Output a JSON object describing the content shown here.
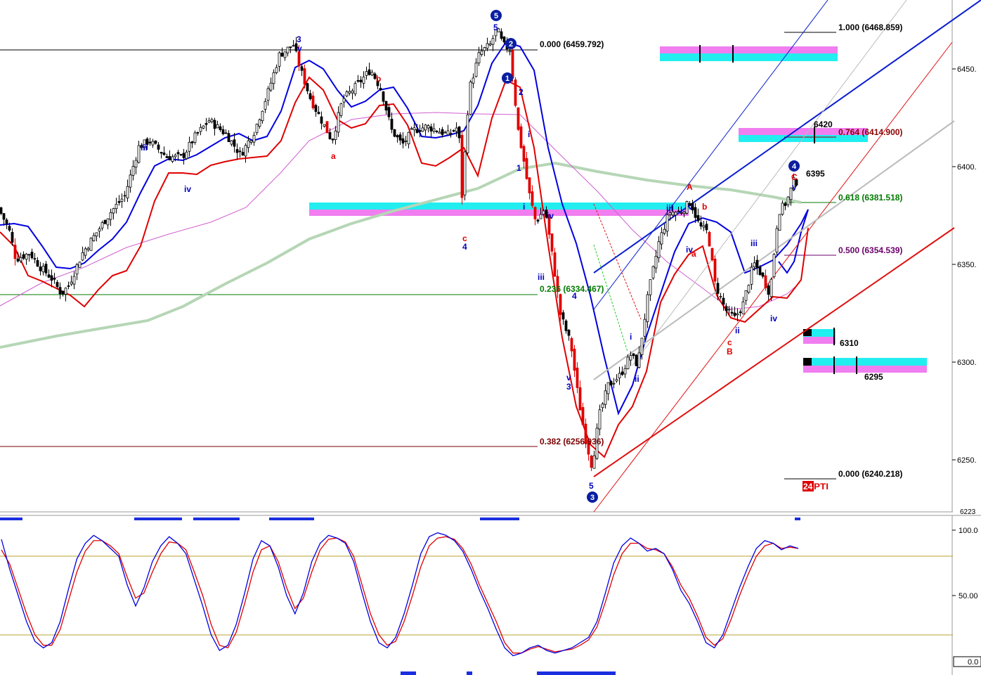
{
  "chart_data": [
    {
      "type": "candlestick",
      "title": "",
      "ylim": [
        6223,
        6474
      ],
      "grid": false,
      "colors": {
        "upper_band": "#0000e0",
        "lower_band": "#e00000",
        "slow_ma": "#b6d6b6",
        "fast_ma": "#d060d0",
        "trend_blue": "#0a1ed0",
        "trend_red": "#e01010",
        "zone_cyan": "#22eef0",
        "zone_magenta": "#f07ef0",
        "label_box": "#e00000"
      },
      "y_axis": {
        "ticks": [
          {
            "value": 6450,
            "label": "6450."
          },
          {
            "value": 6400,
            "label": "6400."
          },
          {
            "value": 6350,
            "label": "6350."
          },
          {
            "value": 6300,
            "label": "6300."
          },
          {
            "value": 6250,
            "label": "6250."
          }
        ],
        "bottom_label": "6223"
      },
      "fib_levels": [
        {
          "ratio": "0.000",
          "value": 6459.792,
          "label": "0.000 (6459.792)",
          "color": "#000000",
          "set": "left"
        },
        {
          "ratio": "0.236",
          "value": 6334.467,
          "label": "0.236 (6334.467)",
          "color": "#007a00",
          "set": "left"
        },
        {
          "ratio": "0.382",
          "value": 6256.936,
          "label": "0.382 (6256.936)",
          "color": "#7a0000",
          "set": "left"
        },
        {
          "ratio": "1.000",
          "value": 6468.859,
          "label": "1.000 (6468.859)",
          "color": "#000000",
          "set": "right"
        },
        {
          "ratio": "0.764",
          "value": 6414.9,
          "label": "0.764 (6414.900)",
          "color": "#8b0000",
          "set": "right"
        },
        {
          "ratio": "0.618",
          "value": 6381.518,
          "label": "0.618 (6381.518)",
          "color": "#007a00",
          "set": "right"
        },
        {
          "ratio": "0.500",
          "value": 6354.539,
          "label": "0.500 (6354.539)",
          "color": "#6a006a",
          "set": "right"
        },
        {
          "ratio": "0.000",
          "value": 6240.218,
          "label": "0.000 (6240.218)",
          "color": "#000000",
          "set": "right"
        }
      ],
      "price_labels": [
        {
          "text": "6420",
          "value": 6420
        },
        {
          "text": "6395",
          "value": 6395
        },
        {
          "text": "6310",
          "value": 6310
        },
        {
          "text": "6295",
          "value": 6295
        }
      ],
      "wave_labels": [
        {
          "text": "3",
          "color": "blue"
        },
        {
          "text": "v",
          "color": "blue"
        },
        {
          "text": "iii",
          "color": "blue"
        },
        {
          "text": "iv",
          "color": "blue"
        },
        {
          "text": "a",
          "color": "red"
        },
        {
          "text": "b",
          "color": "red"
        },
        {
          "text": "c",
          "color": "red"
        },
        {
          "text": "4",
          "color": "blue"
        },
        {
          "text": "5",
          "color": "blue"
        },
        {
          "text": "1",
          "color": "blue"
        },
        {
          "text": "2",
          "color": "blue"
        },
        {
          "text": "i",
          "color": "blue"
        },
        {
          "text": "ii",
          "color": "blue"
        },
        {
          "text": "A",
          "color": "red"
        },
        {
          "text": "B",
          "color": "red"
        },
        {
          "text": "C",
          "color": "red"
        }
      ],
      "circled_labels": [
        "5",
        "1",
        "2",
        "3",
        "4"
      ],
      "logo_text": "24PTI"
    },
    {
      "type": "line",
      "title": "",
      "ylim": [
        0,
        100
      ],
      "y_axis": {
        "ticks": [
          {
            "value": 100,
            "label": "100.0"
          },
          {
            "value": 50,
            "label": "50.00"
          },
          {
            "value": 0,
            "label": "0.0"
          }
        ]
      },
      "levels": [
        80,
        20
      ],
      "series": [
        {
          "color": "#0000e0",
          "values": [
            93,
            70,
            50,
            30,
            15,
            10,
            14,
            30,
            55,
            78,
            90,
            96,
            92,
            86,
            80,
            58,
            42,
            56,
            76,
            88,
            95,
            90,
            82,
            62,
            42,
            20,
            8,
            12,
            28,
            52,
            78,
            92,
            88,
            72,
            50,
            36,
            52,
            76,
            90,
            96,
            94,
            90,
            76,
            52,
            30,
            14,
            10,
            18,
            36,
            58,
            82,
            95,
            98,
            96,
            92,
            84,
            70,
            54,
            40,
            24,
            10,
            4,
            6,
            10,
            12,
            8,
            6,
            8,
            10,
            14,
            18,
            30,
            52,
            75,
            88,
            94,
            90,
            84,
            86,
            82,
            70,
            54,
            44,
            30,
            14,
            10,
            20,
            38,
            56,
            72,
            86,
            92,
            90,
            85,
            88,
            86
          ]
        },
        {
          "color": "#e00000",
          "values": [
            85,
            74,
            55,
            36,
            20,
            12,
            12,
            24,
            46,
            68,
            84,
            92,
            92,
            88,
            82,
            64,
            48,
            52,
            68,
            82,
            91,
            90,
            85,
            68,
            50,
            28,
            12,
            10,
            22,
            44,
            68,
            85,
            88,
            76,
            56,
            40,
            48,
            68,
            85,
            93,
            94,
            91,
            80,
            58,
            36,
            20,
            12,
            15,
            30,
            50,
            72,
            88,
            94,
            95,
            93,
            86,
            74,
            58,
            44,
            30,
            14,
            6,
            6,
            9,
            11,
            9,
            7,
            8,
            9,
            12,
            16,
            26,
            45,
            66,
            82,
            90,
            90,
            86,
            85,
            82,
            72,
            58,
            48,
            34,
            18,
            12,
            17,
            32,
            50,
            66,
            80,
            88,
            90,
            86,
            87,
            86
          ]
        }
      ]
    }
  ]
}
